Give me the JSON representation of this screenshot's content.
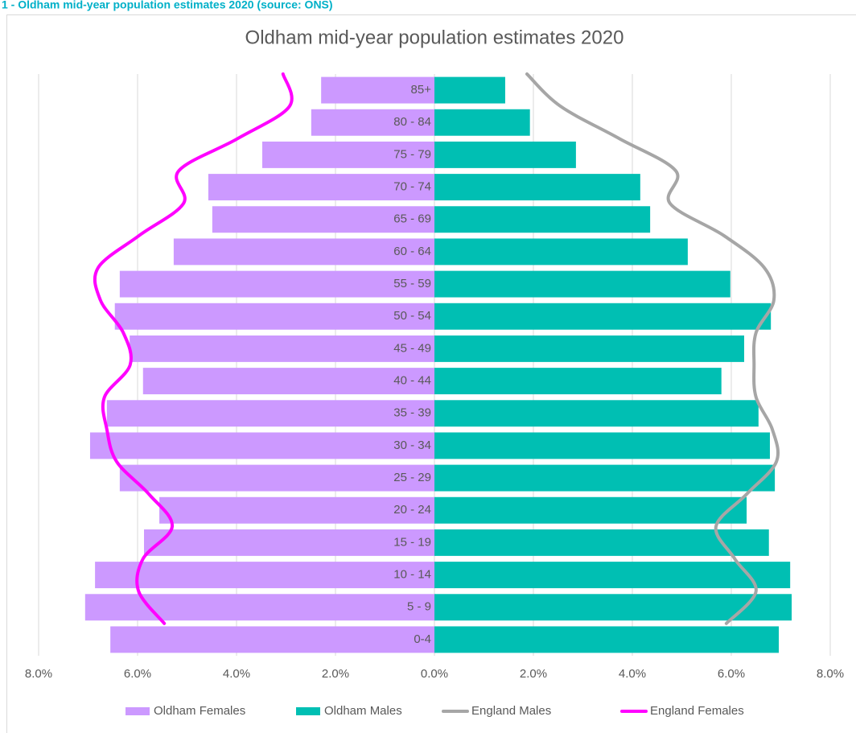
{
  "header": "1 - Oldham mid-year population estimates 2020 (source: ONS)",
  "chart_data": {
    "type": "bar",
    "orientation": "horizontal",
    "title": "Oldham mid-year population estimates 2020",
    "categories": [
      "0-4",
      "5 - 9",
      "10 - 14",
      "15 - 19",
      "20 - 24",
      "25 - 29",
      "30 - 34",
      "35 - 39",
      "40 - 44",
      "45 - 49",
      "50 - 54",
      "55 - 59",
      "60 - 64",
      "65 - 69",
      "70 - 74",
      "75 - 79",
      "80 - 84",
      "85+"
    ],
    "series": [
      {
        "name": "Oldham Females",
        "type": "bar",
        "color": "#cc99ff",
        "values": [
          -6.55,
          -7.06,
          -6.86,
          -5.87,
          -5.56,
          -6.36,
          -6.96,
          -6.62,
          -5.89,
          -6.16,
          -6.46,
          -6.36,
          -5.27,
          -4.49,
          -4.57,
          -3.48,
          -2.49,
          -2.29
        ]
      },
      {
        "name": "Oldham Males",
        "type": "bar",
        "color": "#00bfb3",
        "values": [
          6.96,
          7.22,
          7.19,
          6.76,
          6.31,
          6.88,
          6.78,
          6.55,
          5.8,
          6.26,
          6.8,
          5.98,
          5.12,
          4.36,
          4.16,
          2.86,
          1.93,
          1.43
        ]
      },
      {
        "name": "England Males",
        "type": "line",
        "color": "#a6a6a6",
        "values": [
          5.9,
          6.5,
          6.07,
          5.69,
          6.31,
          6.91,
          6.83,
          6.5,
          6.46,
          6.5,
          6.86,
          6.67,
          5.85,
          4.76,
          4.88,
          3.74,
          2.55,
          1.87
        ]
      },
      {
        "name": "England Females",
        "type": "line",
        "color": "#ff00ff",
        "values": [
          -5.46,
          -5.98,
          -5.89,
          -5.3,
          -5.77,
          -6.42,
          -6.62,
          -6.67,
          -6.15,
          -6.29,
          -6.75,
          -6.8,
          -5.97,
          -5.07,
          -5.17,
          -3.98,
          -2.93,
          -3.06
        ]
      }
    ],
    "xlim": [
      -8,
      8
    ],
    "xticks": [
      {
        "value": -8,
        "label": "8.0%"
      },
      {
        "value": -6,
        "label": "6.0%"
      },
      {
        "value": -4,
        "label": "4.0%"
      },
      {
        "value": -2,
        "label": "2.0%"
      },
      {
        "value": 0,
        "label": "0.0%"
      },
      {
        "value": 2,
        "label": "2.0%"
      },
      {
        "value": 4,
        "label": "4.0%"
      },
      {
        "value": 6,
        "label": "6.0%"
      },
      {
        "value": 8,
        "label": "8.0%"
      }
    ],
    "grid": true,
    "legend": "bottom"
  }
}
